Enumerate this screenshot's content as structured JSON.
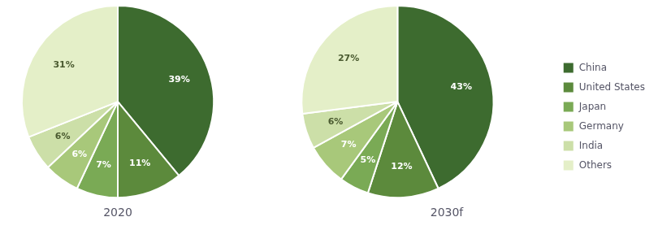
{
  "chart_data": [
    {
      "type": "pie",
      "title": "2020",
      "categories": [
        "China",
        "United States",
        "Japan",
        "Germany",
        "India",
        "Others"
      ],
      "values": [
        39,
        11,
        7,
        6,
        6,
        31
      ],
      "value_labels": [
        "39%",
        "11%",
        "7%",
        "6%",
        "6%",
        "31%"
      ],
      "colors": [
        "#3d6b2f",
        "#5c8a3c",
        "#7aaa55",
        "#a8c87a",
        "#ccdfa8",
        "#e4efc8"
      ],
      "data_labels": true,
      "legend": false
    },
    {
      "type": "pie",
      "title": "2030f",
      "categories": [
        "China",
        "United States",
        "Japan",
        "Germany",
        "India",
        "Others"
      ],
      "values": [
        43,
        12,
        5,
        7,
        6,
        27
      ],
      "value_labels": [
        "43%",
        "12%",
        "5%",
        "7%",
        "6%",
        "27%"
      ],
      "colors": [
        "#3d6b2f",
        "#5c8a3c",
        "#7aaa55",
        "#a8c87a",
        "#ccdfa8",
        "#e4efc8"
      ],
      "data_labels": true,
      "legend": "right"
    }
  ]
}
